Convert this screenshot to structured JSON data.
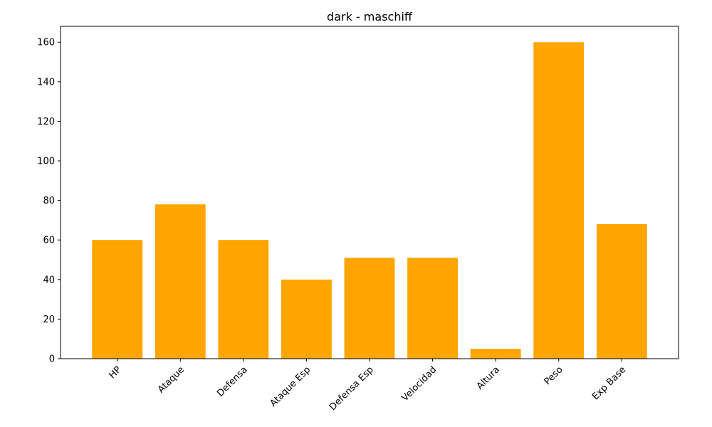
{
  "chart_data": {
    "type": "bar",
    "title": "dark - maschiff",
    "xlabel": "",
    "ylabel": "",
    "categories": [
      "HP",
      "Ataque",
      "Defensa",
      "Ataque Esp",
      "Defensa Esp",
      "Velocidad",
      "Altura",
      "Peso",
      "Exp Base"
    ],
    "values": [
      60,
      78,
      60,
      40,
      51,
      51,
      5,
      160,
      68
    ],
    "ylim": [
      0,
      168
    ],
    "yticks": [
      0,
      20,
      40,
      60,
      80,
      100,
      120,
      140,
      160
    ],
    "bar_color": "#ffa500",
    "grid": false,
    "legend": "none"
  }
}
